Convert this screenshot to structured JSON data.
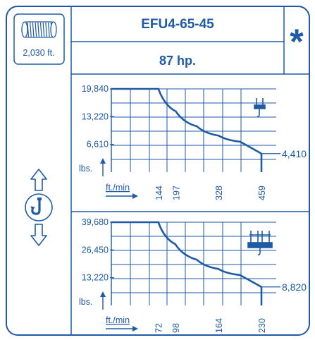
{
  "header": {
    "model": "EFU4-65-45",
    "power": "87 hp.",
    "rope_length": "2,030 ft.",
    "badge": "*"
  },
  "icons": {
    "rope_drum": "rope-drum-icon",
    "hook_up_down": "hook-up-down-icon",
    "single_reeving": "single-reeving-icon",
    "double_reeving": "double-reeving-icon"
  },
  "colors": {
    "ink": "#1f5aa6",
    "grid": "#1f5aa6",
    "paper": "#ffffff"
  },
  "chart_data": [
    {
      "type": "line",
      "title": "",
      "ylabel": "lbs.",
      "xlabel": "ft./min",
      "y_ticks": [
        "19,840",
        "13,220",
        "6,610"
      ],
      "x_ticks": [
        "144",
        "197",
        "328",
        "459"
      ],
      "end_label": "4,410",
      "xlim": [
        0,
        459
      ],
      "ylim": [
        0,
        19840
      ],
      "grid": true,
      "series": [
        {
          "x": [
            0,
            144,
            197,
            262,
            328,
            394,
            459
          ],
          "y": [
            19840,
            19840,
            14500,
            10900,
            8700,
            7250,
            4410
          ]
        }
      ]
    },
    {
      "type": "line",
      "title": "",
      "ylabel": "lbs.",
      "xlabel": "ft./min",
      "y_ticks": [
        "39,680",
        "26,450",
        "13,220"
      ],
      "x_ticks": [
        "72",
        "98",
        "164",
        "230"
      ],
      "end_label": "8,820",
      "xlim": [
        0,
        230
      ],
      "ylim": [
        0,
        39680
      ],
      "grid": true,
      "series": [
        {
          "x": [
            0,
            72,
            98,
            131,
            164,
            197,
            230
          ],
          "y": [
            39680,
            39680,
            29200,
            21800,
            17400,
            14500,
            8820
          ]
        }
      ]
    }
  ]
}
